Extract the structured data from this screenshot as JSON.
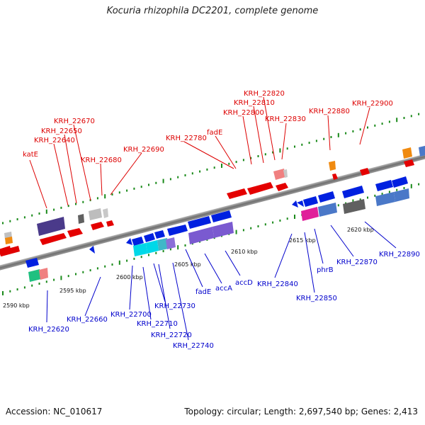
{
  "title": "Kocuria rhizophila DC2201, complete genome",
  "footer": {
    "accession": "Accession: NC_010617",
    "topology": "Topology: circular; Length: 2,697,540 bp; Genes: 2,413"
  },
  "colors": {
    "backbone": "#808080",
    "label_top": "#dd0000",
    "label_bottom": "#0000cc",
    "dot": "#1a8a1a"
  },
  "scale_ticks": [
    "2590 kbp",
    "2595 kbp",
    "2600 kbp",
    "2605 kbp",
    "2610 kbp",
    "2615 kbp",
    "2620 kbp"
  ],
  "genes_top": [
    "katE",
    "KRH_22640",
    "KRH_22650",
    "KRH_22670",
    "KRH_22680",
    "KRH_22690",
    "KRH_22780",
    "fadE",
    "KRH_22800",
    "KRH_22810",
    "KRH_22820",
    "KRH_22830",
    "KRH_22880",
    "KRH_22900"
  ],
  "genes_bottom": [
    "KRH_22620",
    "KRH_22660",
    "KRH_22700",
    "KRH_22710",
    "KRH_22720",
    "KRH_22730",
    "KRH_22740",
    "fadE",
    "accA",
    "accD",
    "KRH_22840",
    "KRH_22850",
    "phrB",
    "KRH_22870",
    "KRH_22890"
  ]
}
